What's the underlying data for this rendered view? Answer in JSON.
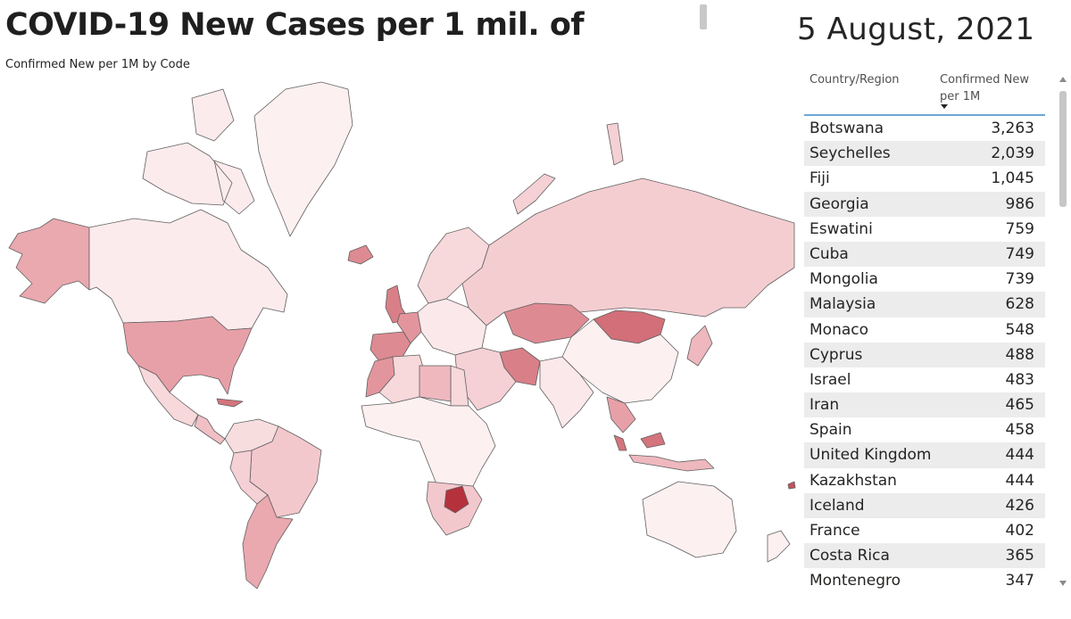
{
  "header": {
    "title": "COVID-19 New Cases per 1 mil. of",
    "subtitle": "Confirmed New per 1M by Code",
    "date": "5 August, 2021"
  },
  "colors": {
    "scale_low": "#fdf0f1",
    "scale_mid": "#e8a0a8",
    "scale_high": "#b5313b",
    "table_header_underline": "#6aa7d9",
    "stripe": "#ececec"
  },
  "table": {
    "columns": [
      "Country/Region",
      "Confirmed New per 1M"
    ],
    "sorted_by": "Confirmed New per 1M",
    "sort_direction": "descending",
    "rows": [
      {
        "country": "Botswana",
        "value": "3,263"
      },
      {
        "country": "Seychelles",
        "value": "2,039"
      },
      {
        "country": "Fiji",
        "value": "1,045"
      },
      {
        "country": "Georgia",
        "value": "986"
      },
      {
        "country": "Eswatini",
        "value": "759"
      },
      {
        "country": "Cuba",
        "value": "749"
      },
      {
        "country": "Mongolia",
        "value": "739"
      },
      {
        "country": "Malaysia",
        "value": "628"
      },
      {
        "country": "Monaco",
        "value": "548"
      },
      {
        "country": "Cyprus",
        "value": "488"
      },
      {
        "country": "Israel",
        "value": "483"
      },
      {
        "country": "Iran",
        "value": "465"
      },
      {
        "country": "Spain",
        "value": "458"
      },
      {
        "country": "United Kingdom",
        "value": "444"
      },
      {
        "country": "Kazakhstan",
        "value": "444"
      },
      {
        "country": "Iceland",
        "value": "426"
      },
      {
        "country": "France",
        "value": "402"
      },
      {
        "country": "Costa Rica",
        "value": "365"
      },
      {
        "country": "Montenegro",
        "value": "347"
      }
    ]
  },
  "map": {
    "regions": [
      {
        "name": "alaska",
        "intensity": 0.45
      },
      {
        "name": "canada",
        "intensity": 0.03
      },
      {
        "name": "greenland",
        "intensity": 0.0
      },
      {
        "name": "usa",
        "intensity": 0.5
      },
      {
        "name": "mexico",
        "intensity": 0.15
      },
      {
        "name": "cuba",
        "intensity": 0.7
      },
      {
        "name": "central-america",
        "intensity": 0.3
      },
      {
        "name": "colombia-venezuela",
        "intensity": 0.12
      },
      {
        "name": "brazil",
        "intensity": 0.25
      },
      {
        "name": "peru-bolivia",
        "intensity": 0.2
      },
      {
        "name": "argentina-chile",
        "intensity": 0.45
      },
      {
        "name": "iceland",
        "intensity": 0.6
      },
      {
        "name": "united-kingdom",
        "intensity": 0.65
      },
      {
        "name": "scandinavia",
        "intensity": 0.15
      },
      {
        "name": "iberia",
        "intensity": 0.6
      },
      {
        "name": "france",
        "intensity": 0.55
      },
      {
        "name": "central-europe",
        "intensity": 0.05
      },
      {
        "name": "russia",
        "intensity": 0.22
      },
      {
        "name": "kazakhstan",
        "intensity": 0.6
      },
      {
        "name": "mongolia",
        "intensity": 0.72
      },
      {
        "name": "iran",
        "intensity": 0.65
      },
      {
        "name": "middle-east",
        "intensity": 0.2
      },
      {
        "name": "north-africa",
        "intensity": 0.15
      },
      {
        "name": "libya",
        "intensity": 0.35
      },
      {
        "name": "morocco",
        "intensity": 0.55
      },
      {
        "name": "sub-saharan-africa",
        "intensity": 0.0
      },
      {
        "name": "southern-africa",
        "intensity": 0.25
      },
      {
        "name": "botswana",
        "intensity": 1.0
      },
      {
        "name": "india",
        "intensity": 0.05
      },
      {
        "name": "china",
        "intensity": 0.0
      },
      {
        "name": "southeast-asia",
        "intensity": 0.5
      },
      {
        "name": "malaysia",
        "intensity": 0.7
      },
      {
        "name": "indonesia",
        "intensity": 0.35
      },
      {
        "name": "japan",
        "intensity": 0.35
      },
      {
        "name": "australia",
        "intensity": 0.0
      },
      {
        "name": "new-zealand",
        "intensity": 0.0
      },
      {
        "name": "fiji",
        "intensity": 0.85
      },
      {
        "name": "svalbard-novaya",
        "intensity": 0.2
      }
    ]
  }
}
